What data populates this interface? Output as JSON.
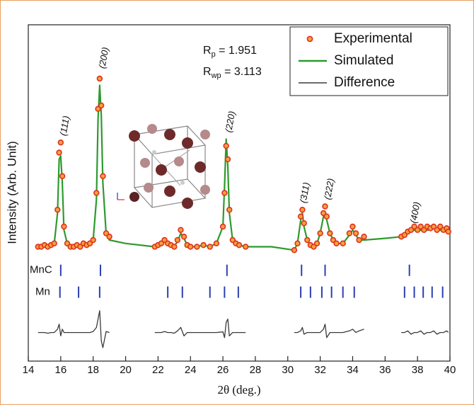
{
  "chart_data": {
    "type": "xrd",
    "x_label": "2θ (deg.)",
    "y_label": "Intensity (Arb. Unit)",
    "xlim": [
      14,
      40
    ],
    "xticks": [
      14,
      16,
      18,
      20,
      22,
      24,
      26,
      28,
      30,
      32,
      34,
      36,
      38,
      40
    ],
    "ylim": [
      0,
      100
    ],
    "legend": "top-right",
    "x": [
      14.6,
      14.8,
      15.0,
      15.2,
      15.4,
      15.6,
      15.8,
      15.9,
      16.0,
      16.1,
      16.2,
      16.4,
      16.6,
      16.8,
      17.0,
      17.2,
      17.4,
      17.6,
      17.8,
      18.0,
      18.2,
      18.3,
      18.4,
      18.5,
      18.6,
      18.8,
      19.0,
      20.0,
      21.8,
      22.0,
      22.2,
      22.4,
      22.6,
      22.8,
      23.0,
      23.2,
      23.4,
      23.6,
      23.8,
      24.0,
      24.4,
      24.8,
      25.2,
      25.6,
      26.0,
      26.1,
      26.2,
      26.3,
      26.4,
      26.6,
      26.8,
      27.0,
      27.4,
      29.0,
      30.4,
      30.6,
      30.8,
      30.9,
      31.0,
      31.2,
      31.4,
      31.6,
      31.8,
      32.0,
      32.2,
      32.3,
      32.4,
      32.6,
      32.8,
      33.0,
      33.4,
      33.8,
      34.0,
      34.2,
      34.4,
      34.7,
      36.0,
      37.0,
      37.2,
      37.4,
      37.6,
      37.8,
      38.0,
      38.2,
      38.4,
      38.6,
      38.8,
      39.0,
      39.2,
      39.4,
      39.6,
      39.8,
      39.9
    ],
    "series": [
      {
        "name": "Experimental",
        "kind": "scatter",
        "color": "#e0301e",
        "fill": "#f2a23c",
        "values": [
          34,
          34,
          34.5,
          34,
          34.5,
          35,
          45,
          62,
          65,
          55,
          40,
          35,
          34,
          34,
          34.5,
          34,
          35,
          34.5,
          35,
          36,
          50,
          75,
          84,
          76,
          55,
          38,
          37,
          null,
          34,
          34.5,
          35,
          36,
          35,
          34.5,
          34,
          36,
          39,
          37,
          34.5,
          34,
          34,
          34.5,
          34,
          35,
          40,
          50,
          64,
          60,
          45,
          36,
          35,
          34.5,
          34,
          null,
          33,
          35,
          43,
          45,
          41,
          36,
          34.5,
          34,
          35,
          38,
          44,
          46,
          43,
          38,
          36,
          35,
          35,
          38,
          40,
          38,
          36,
          37,
          null,
          37,
          37.5,
          38.5,
          39,
          40,
          39,
          40,
          39,
          40,
          39.5,
          40,
          39,
          40,
          39,
          39.5,
          38.5
        ]
      },
      {
        "name": "Simulated",
        "kind": "line",
        "color": "#2e9a2e",
        "values": [
          34,
          34,
          34.5,
          34.2,
          34.5,
          35,
          44,
          60,
          61,
          53,
          39,
          35,
          34,
          34,
          34.5,
          34,
          35,
          34.5,
          35,
          36,
          48,
          72,
          82,
          73,
          53,
          38,
          36,
          35,
          34,
          34.5,
          35,
          35.5,
          35,
          34.5,
          34.2,
          35.5,
          38,
          36.5,
          34.5,
          34,
          34,
          34.5,
          34,
          35,
          40,
          52,
          66,
          58,
          44,
          36,
          35,
          34.5,
          34,
          34,
          33,
          35,
          42,
          44,
          40,
          36,
          34.5,
          34,
          35,
          38,
          43,
          44,
          42,
          38,
          36,
          35,
          35,
          37.5,
          39,
          37.5,
          36,
          36,
          36.5,
          37,
          37.5,
          38,
          38.5,
          39,
          38.5,
          39,
          38.5,
          39,
          39,
          39.5,
          38.5,
          39,
          38.5,
          39,
          38.5
        ]
      },
      {
        "name": "Difference",
        "kind": "line",
        "color": "#3a3a3a",
        "values": [
          8.5,
          8.5,
          8.5,
          8.3,
          8.5,
          8.5,
          9.5,
          11,
          7.5,
          9.5,
          8.5,
          8.5,
          8.5,
          8.5,
          8.5,
          8.5,
          8.5,
          8.5,
          8.5,
          8.8,
          10,
          12.5,
          15,
          6,
          4,
          8.8,
          8.5,
          null,
          8.5,
          8.5,
          8.5,
          8.8,
          8.5,
          8.5,
          8.3,
          9,
          10,
          7.5,
          8.5,
          8.5,
          8.5,
          8.5,
          8.5,
          8.5,
          8.7,
          7,
          11.5,
          12.5,
          7.5,
          8.5,
          8.5,
          8.5,
          8.5,
          null,
          8.5,
          8.5,
          9,
          10,
          8,
          8.5,
          8.5,
          8.5,
          8.5,
          8.5,
          9.5,
          11,
          7,
          8.5,
          8.5,
          8.5,
          8.5,
          9,
          9.5,
          8.5,
          9,
          9.5,
          null,
          8.5,
          8.5,
          9,
          8,
          8.5,
          8.5,
          9,
          8,
          8.5,
          8.5,
          9,
          8,
          8.5,
          8.5,
          9,
          8.5
        ]
      }
    ],
    "reflections": [
      {
        "name": "MnC",
        "level": 27,
        "color": "#2b3fb0",
        "positions": [
          16.0,
          18.45,
          26.25,
          30.85,
          32.3,
          37.5
        ]
      },
      {
        "name": "Mn",
        "level": 20.5,
        "color": "#2b3fb0",
        "positions": [
          15.95,
          17.1,
          18.4,
          22.6,
          23.5,
          25.2,
          26.1,
          26.95,
          30.8,
          31.4,
          32.1,
          32.7,
          33.4,
          34.1,
          37.2,
          37.8,
          38.35,
          38.9,
          39.55
        ]
      }
    ],
    "peak_labels": [
      {
        "text": "(111)",
        "x": 16.0,
        "y": 67
      },
      {
        "text": "(200)",
        "x": 18.4,
        "y": 87
      },
      {
        "text": "(220)",
        "x": 26.2,
        "y": 68
      },
      {
        "text": "(311)",
        "x": 30.8,
        "y": 47
      },
      {
        "text": "(222)",
        "x": 32.3,
        "y": 48
      },
      {
        "text": "(400)",
        "x": 37.6,
        "y": 41
      }
    ],
    "fit_stats": [
      {
        "symbol": "R",
        "subscript": "p",
        "text": " = 1.951"
      },
      {
        "symbol": "R",
        "subscript": "wp",
        "text": " = 3.113"
      }
    ]
  }
}
